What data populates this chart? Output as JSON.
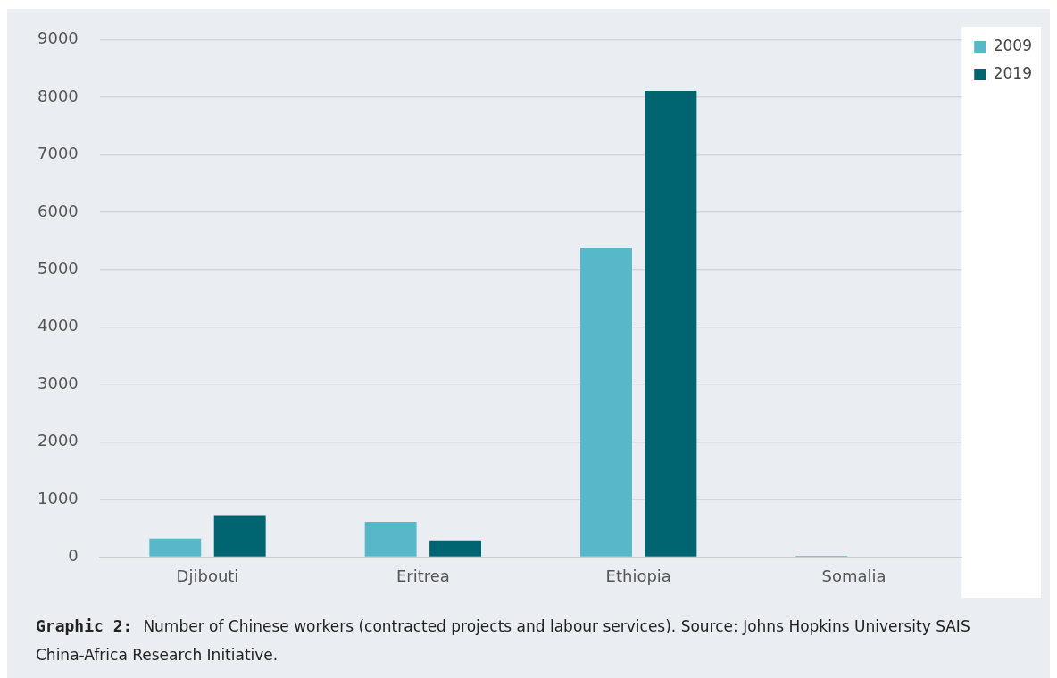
{
  "chart_data": {
    "type": "bar",
    "categories": [
      "Djibouti",
      "Eritrea",
      "Ethiopia",
      "Somalia"
    ],
    "series": [
      {
        "name": "2009",
        "color": "#56b8c8",
        "values": [
          320,
          610,
          5380,
          20
        ]
      },
      {
        "name": "2019",
        "color": "#006570",
        "values": [
          730,
          290,
          8110,
          0
        ]
      }
    ],
    "ylim": [
      0,
      9000
    ],
    "yticks": [
      0,
      1000,
      2000,
      3000,
      4000,
      5000,
      6000,
      7000,
      8000,
      9000
    ],
    "grid": "y",
    "legend": "top right",
    "annotations": [
      "Graphic 2:",
      "Number of Chinese workers (contracted projects and labour services). Source: Johns Hopkins University SAIS China-Africa Research Initiative."
    ]
  }
}
